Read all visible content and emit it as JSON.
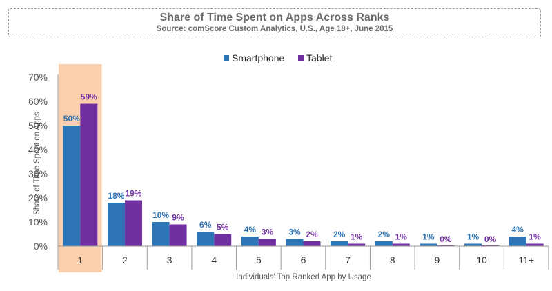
{
  "chart_data": {
    "type": "bar",
    "title": "Share of Time Spent on Apps Across Ranks",
    "subtitle": "Source: comScore Custom Analytics, U.S., Age 18+, June 2015",
    "xlabel": "Individuals' Top Ranked App by Usage",
    "ylabel": "Share of Time Spent on Apps",
    "ylim": [
      0,
      70
    ],
    "yticks": [
      "0%",
      "10%",
      "20%",
      "30%",
      "40%",
      "50%",
      "60%",
      "70%"
    ],
    "categories": [
      "1",
      "2",
      "3",
      "4",
      "5",
      "6",
      "7",
      "8",
      "9",
      "10",
      "11+"
    ],
    "highlight_category": "1",
    "legend_position": "top",
    "series": [
      {
        "name": "Smartphone",
        "color": "#2e75b6",
        "values": [
          50,
          18,
          10,
          6,
          4,
          3,
          2,
          2,
          1,
          1,
          4
        ],
        "labels": [
          "50%",
          "18%",
          "10%",
          "6%",
          "4%",
          "3%",
          "2%",
          "2%",
          "1%",
          "1%",
          "4%"
        ]
      },
      {
        "name": "Tablet",
        "color": "#7030a0",
        "values": [
          59,
          19,
          9,
          5,
          3,
          2,
          1,
          1,
          0,
          0,
          1
        ],
        "labels": [
          "59%",
          "19%",
          "9%",
          "5%",
          "3%",
          "2%",
          "1%",
          "1%",
          "0%",
          "0%",
          "1%"
        ]
      }
    ]
  },
  "colors": {
    "highlight": "#fbd0ae",
    "axis": "#9a9a9a",
    "title": "#6b6b6b"
  }
}
